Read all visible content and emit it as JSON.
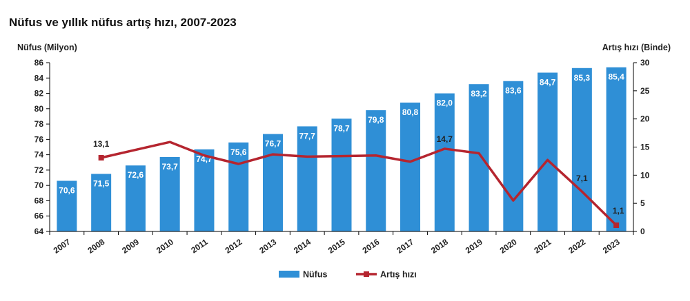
{
  "chart_title": "Nüfus ve yıllık nüfus artış hızı, 2007-2023",
  "colors": {
    "bar": "#2f8fd6",
    "line": "#b5252f",
    "axis": "#000000"
  },
  "chart_data": {
    "type": "bar",
    "categories": [
      "2007",
      "2008",
      "2009",
      "2010",
      "2011",
      "2012",
      "2013",
      "2014",
      "2015",
      "2016",
      "2017",
      "2018",
      "2019",
      "2020",
      "2021",
      "2022",
      "2023"
    ],
    "left_axis": {
      "label": "Nüfus (Milyon)",
      "ylim": [
        64,
        86
      ],
      "ticks": [
        "64",
        "66",
        "68",
        "70",
        "72",
        "74",
        "76",
        "78",
        "80",
        "82",
        "84",
        "86"
      ]
    },
    "right_axis": {
      "label": "Artış hızı (Binde)",
      "ylim": [
        0,
        30
      ],
      "ticks": [
        "0",
        "5",
        "10",
        "15",
        "20",
        "25",
        "30"
      ]
    },
    "series": [
      {
        "name": "Nüfus",
        "type": "bar",
        "axis": "left",
        "values": [
          70.6,
          71.5,
          72.6,
          73.7,
          74.7,
          75.6,
          76.7,
          77.7,
          78.7,
          79.8,
          80.8,
          82.0,
          83.2,
          83.6,
          84.7,
          85.3,
          85.4
        ],
        "labels": [
          "70,6",
          "71,5",
          "72,6",
          "73,7",
          "74,7",
          "75,6",
          "76,7",
          "77,7",
          "78,7",
          "79,8",
          "80,8",
          "82,0",
          "83,2",
          "83,6",
          "84,7",
          "85,3",
          "85,4"
        ]
      },
      {
        "name": "Artış hızı",
        "type": "line",
        "axis": "right",
        "values": [
          null,
          13.1,
          14.5,
          15.9,
          13.5,
          12.0,
          13.7,
          13.3,
          13.4,
          13.5,
          12.4,
          14.7,
          13.9,
          5.5,
          12.7,
          7.1,
          1.1
        ],
        "labels": {
          "2008": "13,1",
          "2018": "14,7",
          "2022": "7,1",
          "2023": "1,1"
        }
      }
    ],
    "legend": {
      "position": "bottom",
      "items": [
        "Nüfus",
        "Artış hızı"
      ]
    },
    "grid": false
  }
}
